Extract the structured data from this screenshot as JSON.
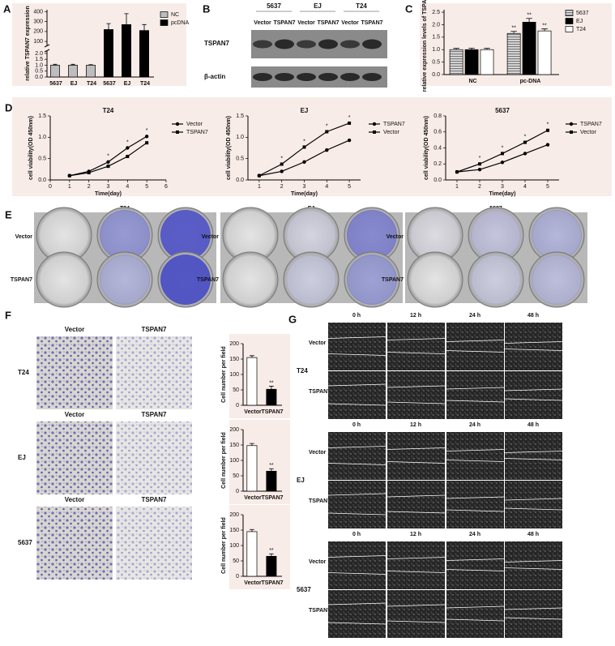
{
  "panel_letters": [
    "A",
    "B",
    "C",
    "D",
    "E",
    "F",
    "G"
  ],
  "chart_data": [
    {
      "type": "bar",
      "ylabel": "relative TSPAN7 expression",
      "categories": [
        "5637",
        "EJ",
        "T24",
        "5637",
        "EJ",
        "T24"
      ],
      "series": [
        {
          "name": "NC",
          "color": "#bdbdbd",
          "values": [
            1,
            1,
            1,
            null,
            null,
            null
          ],
          "errors": [
            0.08,
            0.08,
            0.05,
            null,
            null,
            null
          ]
        },
        {
          "name": "pcDNA",
          "color": "#000000",
          "values": [
            null,
            null,
            null,
            220,
            270,
            210
          ],
          "errors": [
            null,
            null,
            null,
            60,
            110,
            60
          ]
        }
      ],
      "ylim": [
        0,
        2.2
      ],
      "yticks": [
        {
          "value": 0,
          "label": "0.0"
        },
        {
          "value": 0.5,
          "label": "0.5"
        },
        {
          "value": 1,
          "label": "1.0"
        },
        {
          "value": 1.5,
          "label": "1.5"
        },
        {
          "value": 2,
          "label": "2.0"
        }
      ],
      "break_ylim": [
        60,
        420
      ],
      "break_yticks": [
        100,
        200,
        300,
        400
      ],
      "legend": "right"
    },
    {
      "type": "bar",
      "ylabel": "relative expression levels of TSPAN7",
      "categories": [
        "NC",
        "pc-DNA"
      ],
      "series": [
        {
          "name": "5637",
          "color": "#9e9e9e",
          "pattern": "stripes",
          "values": [
            1,
            1.65
          ],
          "errors": [
            0.05,
            0.08
          ],
          "significance": [
            null,
            "**"
          ]
        },
        {
          "name": "EJ",
          "color": "#000000",
          "values": [
            1,
            2.1
          ],
          "errors": [
            0.06,
            0.15
          ],
          "significance": [
            null,
            "**"
          ]
        },
        {
          "name": "T24",
          "color": "#ffffff",
          "values": [
            1,
            1.75
          ],
          "errors": [
            0.05,
            0.08
          ],
          "significance": [
            null,
            "**"
          ]
        }
      ],
      "ylim": [
        0,
        2.6
      ],
      "yticks": [
        {
          "value": 0,
          "label": "0.0"
        },
        {
          "value": 0.5,
          "label": "0.5"
        },
        {
          "value": 1,
          "label": "1.0"
        },
        {
          "value": 1.5,
          "label": "1.5"
        },
        {
          "value": 2,
          "label": "2.0"
        },
        {
          "value": 2.5,
          "label": "2.5"
        }
      ],
      "legend": "right"
    },
    {
      "type": "line",
      "title": "T24",
      "xlabel": "Time(day)",
      "ylabel": "cell viability(OD 450nm)",
      "x": [
        1,
        2,
        3,
        4,
        5
      ],
      "xlim": [
        0,
        6
      ],
      "xticks": [
        0,
        1,
        2,
        3,
        4,
        5,
        6
      ],
      "ylim": [
        0,
        1.5
      ],
      "yticks": [
        {
          "value": 0,
          "label": "0.0"
        },
        {
          "value": 0.5,
          "label": "0.5"
        },
        {
          "value": 1,
          "label": "1.0"
        },
        {
          "value": 1.5,
          "label": "1.5"
        }
      ],
      "series": [
        {
          "name": "Vector",
          "marker": "circle",
          "color": "#000000",
          "values": [
            0.1,
            0.2,
            0.42,
            0.75,
            1.02
          ]
        },
        {
          "name": "TSPAN7",
          "marker": "square",
          "color": "#000000",
          "values": [
            0.1,
            0.17,
            0.32,
            0.55,
            0.87
          ]
        }
      ],
      "significance": [
        null,
        null,
        "*",
        "*",
        "*"
      ],
      "legend": "right"
    },
    {
      "type": "line",
      "title": "EJ",
      "xlabel": "Time(day)",
      "ylabel": "cell viability(OD 450nm)",
      "x": [
        1,
        2,
        3,
        4,
        5
      ],
      "xlim": [
        0.5,
        5.5
      ],
      "xticks": [
        1,
        2,
        3,
        4,
        5
      ],
      "ylim": [
        0,
        1.5
      ],
      "yticks": [
        {
          "value": 0,
          "label": "0.0"
        },
        {
          "value": 0.5,
          "label": "0.5"
        },
        {
          "value": 1,
          "label": "1.0"
        },
        {
          "value": 1.5,
          "label": "1.5"
        }
      ],
      "series": [
        {
          "name": "TSPAN7",
          "marker": "circle",
          "color": "#000000",
          "values": [
            0.1,
            0.2,
            0.42,
            0.7,
            0.93
          ]
        },
        {
          "name": "Vector",
          "marker": "square",
          "color": "#000000",
          "values": [
            0.1,
            0.37,
            0.77,
            1.13,
            1.33
          ]
        }
      ],
      "significance": [
        null,
        "*",
        "*",
        "*",
        "*"
      ],
      "legend": "right"
    },
    {
      "type": "line",
      "title": "5637",
      "xlabel": "Time(day)",
      "ylabel": "cell viability(OD 450nm)",
      "x": [
        1,
        2,
        3,
        4,
        5
      ],
      "xlim": [
        0.5,
        5.5
      ],
      "xticks": [
        1,
        2,
        3,
        4,
        5
      ],
      "ylim": [
        0,
        0.8
      ],
      "yticks": [
        {
          "value": 0,
          "label": "0.0"
        },
        {
          "value": 0.2,
          "label": "0.2"
        },
        {
          "value": 0.4,
          "label": "0.4"
        },
        {
          "value": 0.6,
          "label": "0.6"
        },
        {
          "value": 0.8,
          "label": "0.8"
        }
      ],
      "series": [
        {
          "name": "TSPAN7",
          "marker": "circle",
          "color": "#000000",
          "values": [
            0.1,
            0.13,
            0.22,
            0.33,
            0.44
          ]
        },
        {
          "name": "Vector",
          "marker": "square",
          "color": "#000000",
          "values": [
            0.1,
            0.2,
            0.33,
            0.47,
            0.62
          ]
        }
      ],
      "significance": [
        null,
        "*",
        "*",
        "*",
        "*"
      ],
      "legend": "right"
    },
    {
      "type": "bar",
      "ylabel": "Cell number per field",
      "categories": [
        "Vector",
        "TSPAN7"
      ],
      "values": [
        155,
        52
      ],
      "errors": [
        6,
        10
      ],
      "colors": [
        "#ffffff",
        "#000000"
      ],
      "significance": [
        null,
        "**"
      ],
      "ylim": [
        0,
        200
      ],
      "yticks": [
        0,
        50,
        100,
        150,
        200
      ]
    },
    {
      "type": "bar",
      "ylabel": "Cell number per field",
      "categories": [
        "Vector",
        "TSPAN7"
      ],
      "values": [
        148,
        65
      ],
      "errors": [
        7,
        8
      ],
      "colors": [
        "#ffffff",
        "#000000"
      ],
      "significance": [
        null,
        "**"
      ],
      "ylim": [
        0,
        200
      ],
      "yticks": [
        0,
        50,
        100,
        150,
        200
      ]
    },
    {
      "type": "bar",
      "ylabel": "Cell number per field",
      "categories": [
        "Vector",
        "TSPAN7"
      ],
      "values": [
        145,
        65
      ],
      "errors": [
        7,
        8
      ],
      "colors": [
        "#ffffff",
        "#000000"
      ],
      "significance": [
        null,
        "**"
      ],
      "ylim": [
        0,
        200
      ],
      "yticks": [
        0,
        50,
        100,
        150,
        200
      ]
    }
  ],
  "blot": {
    "groups": [
      "5637",
      "EJ",
      "T24"
    ],
    "lanes": [
      "Vector",
      "TSPAN7",
      "Vector",
      "TSPAN7",
      "Vector",
      "TSPAN7"
    ],
    "rows": [
      "TSPAN7",
      "β-actin"
    ]
  },
  "colony": {
    "panels": [
      {
        "title": "T24",
        "rows": [
          "Vector",
          "TSPAN7"
        ]
      },
      {
        "title": "EJ",
        "rows": [
          "Vector",
          "TSPAN7"
        ]
      },
      {
        "title": "5637",
        "rows": [
          "Vector",
          "TSPAN7"
        ]
      }
    ]
  },
  "transwell": {
    "panels": [
      {
        "cell_line": "T24",
        "columns": [
          "Vector",
          "TSPAN7"
        ]
      },
      {
        "cell_line": "EJ",
        "columns": [
          "Vector",
          "TSPAN7"
        ]
      },
      {
        "cell_line": "5637",
        "columns": [
          "Vector",
          "TSPAN7"
        ]
      }
    ]
  },
  "wound": {
    "panels": [
      {
        "cell_line": "T24",
        "times": [
          "0 h",
          "12 h",
          "24 h",
          "48 h"
        ],
        "rows": [
          "Vector",
          "TSPAN7"
        ]
      },
      {
        "cell_line": "EJ",
        "times": [
          "0 h",
          "12 h",
          "24 h",
          "48 h"
        ],
        "rows": [
          "Vector",
          "TSPAN7"
        ]
      },
      {
        "cell_line": "5637",
        "times": [
          "0 h",
          "12 h",
          "24 h",
          "48 h"
        ],
        "rows": [
          "Vector",
          "TSPAN7"
        ]
      }
    ]
  }
}
